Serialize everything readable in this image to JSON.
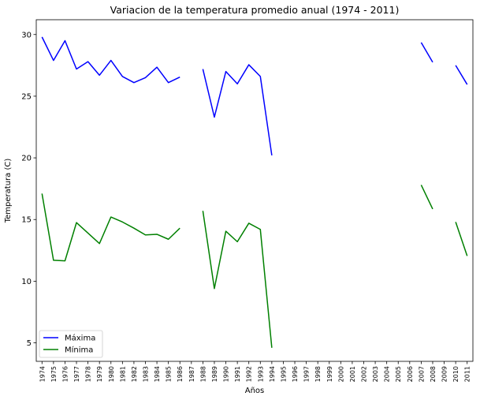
{
  "chart_data": {
    "type": "line",
    "title": "Variacion de la temperatura promedio anual (1974 - 2011)",
    "xlabel": "Años",
    "ylabel": "Temperatura (C)",
    "categories": [
      "1974",
      "1975",
      "1976",
      "1977",
      "1978",
      "1979",
      "1980",
      "1981",
      "1982",
      "1983",
      "1984",
      "1985",
      "1986",
      "1987",
      "1988",
      "1989",
      "1990",
      "1991",
      "1992",
      "1993",
      "1994",
      "1995",
      "1996",
      "1997",
      "1998",
      "1999",
      "2000",
      "2001",
      "2002",
      "2003",
      "2004",
      "2005",
      "2006",
      "2007",
      "2008",
      "2009",
      "2010",
      "2011"
    ],
    "yticks": [
      5,
      10,
      15,
      20,
      25,
      30
    ],
    "ylim": [
      3.5,
      31.2
    ],
    "grid": false,
    "legend_position": "lower-left",
    "series": [
      {
        "name": "Máxima",
        "color": "#0000ff",
        "values": [
          29.8,
          27.9,
          29.5,
          27.2,
          27.8,
          26.7,
          27.9,
          26.6,
          26.1,
          26.5,
          27.35,
          26.1,
          26.55,
          null,
          27.2,
          23.3,
          27.0,
          26.0,
          27.55,
          26.6,
          20.2,
          null,
          null,
          null,
          null,
          null,
          null,
          null,
          null,
          null,
          null,
          null,
          null,
          29.35,
          27.75,
          null,
          27.5,
          25.95
        ]
      },
      {
        "name": "Mínima",
        "color": "#008000",
        "values": [
          17.1,
          11.7,
          11.65,
          14.75,
          13.9,
          13.05,
          15.2,
          14.8,
          14.3,
          13.75,
          13.8,
          13.4,
          14.3,
          null,
          15.7,
          9.4,
          14.05,
          13.2,
          14.7,
          14.2,
          4.6,
          null,
          null,
          null,
          null,
          null,
          null,
          null,
          null,
          null,
          null,
          null,
          null,
          17.8,
          15.85,
          null,
          14.8,
          12.05
        ]
      }
    ]
  }
}
